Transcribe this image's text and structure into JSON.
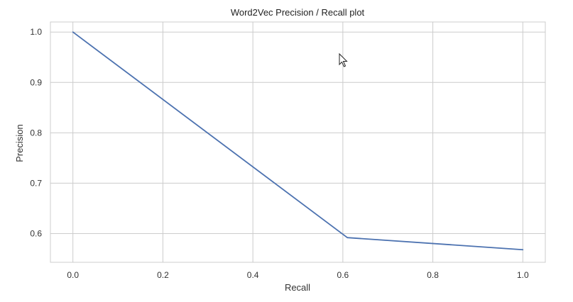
{
  "chart_data": {
    "type": "line",
    "title": "Word2Vec Precision / Recall plot",
    "xlabel": "Recall",
    "ylabel": "Precision",
    "xlim": [
      -0.05,
      1.05
    ],
    "ylim": [
      0.543,
      1.02
    ],
    "xticks": [
      0.0,
      0.2,
      0.4,
      0.6,
      0.8,
      1.0
    ],
    "xtick_labels": [
      "0.0",
      "0.2",
      "0.4",
      "0.6",
      "0.8",
      "1.0"
    ],
    "yticks": [
      0.6,
      0.7,
      0.8,
      0.9,
      1.0
    ],
    "ytick_labels": [
      "0.6",
      "0.7",
      "0.8",
      "0.9",
      "1.0"
    ],
    "grid": true,
    "legend": "none",
    "series": [
      {
        "x": [
          0.0,
          0.61,
          1.0
        ],
        "y": [
          1.0,
          0.592,
          0.568
        ],
        "color": "#4c72b0"
      }
    ],
    "colors": {
      "grid": "#cccccc",
      "frame": "#cccccc",
      "line": "#4c72b0"
    }
  },
  "cursor": {
    "icon": "mouse-pointer-icon"
  }
}
